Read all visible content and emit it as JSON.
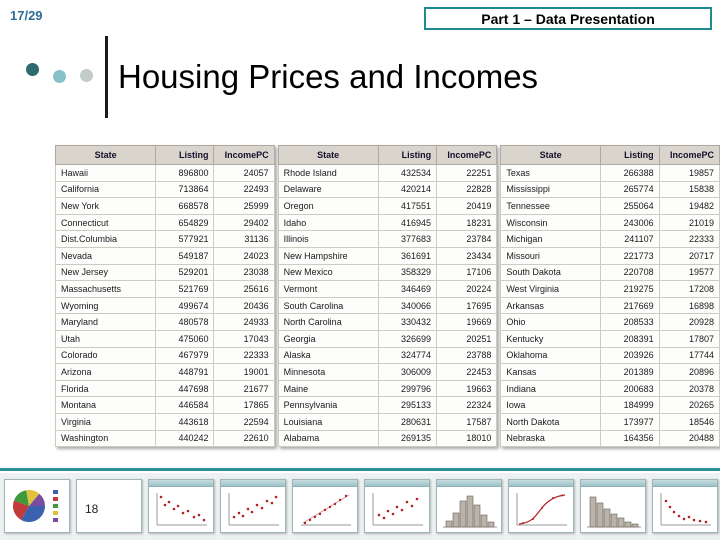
{
  "page": {
    "page_indicator": "17/29",
    "header_label": "Part 1 – Data Presentation",
    "title": "Housing Prices and Incomes"
  },
  "colors": {
    "accent_teal": "#1f8a8f",
    "page_indicator_blue": "#2e6e96",
    "table_header_bg": "#d9d5cc"
  },
  "tables": [
    {
      "headers": [
        "State",
        "Listing",
        "IncomePC"
      ],
      "rows": [
        [
          "Hawaii",
          "896800",
          "24057"
        ],
        [
          "California",
          "713864",
          "22493"
        ],
        [
          "New York",
          "668578",
          "25999"
        ],
        [
          "Connecticut",
          "654829",
          "29402"
        ],
        [
          "Dist.Columbia",
          "577921",
          "31136"
        ],
        [
          "Nevada",
          "549187",
          "24023"
        ],
        [
          "New Jersey",
          "529201",
          "23038"
        ],
        [
          "Massachusetts",
          "521769",
          "25616"
        ],
        [
          "Wyoming",
          "499674",
          "20436"
        ],
        [
          "Maryland",
          "480578",
          "24933"
        ],
        [
          "Utah",
          "475060",
          "17043"
        ],
        [
          "Colorado",
          "467979",
          "22333"
        ],
        [
          "Arizona",
          "448791",
          "19001"
        ],
        [
          "Florida",
          "447698",
          "21677"
        ],
        [
          "Montana",
          "446584",
          "17865"
        ],
        [
          "Virginia",
          "443618",
          "22594"
        ],
        [
          "Washington",
          "440242",
          "22610"
        ]
      ]
    },
    {
      "headers": [
        "State",
        "Listing",
        "IncomePC"
      ],
      "rows": [
        [
          "Rhode Island",
          "432534",
          "22251"
        ],
        [
          "Delaware",
          "420214",
          "22828"
        ],
        [
          "Oregon",
          "417551",
          "20419"
        ],
        [
          "Idaho",
          "416945",
          "18231"
        ],
        [
          "Illinois",
          "377683",
          "23784"
        ],
        [
          "New Hampshire",
          "361691",
          "23434"
        ],
        [
          "New Mexico",
          "358329",
          "17106"
        ],
        [
          "Vermont",
          "346469",
          "20224"
        ],
        [
          "South Carolina",
          "340066",
          "17695"
        ],
        [
          "North Carolina",
          "330432",
          "19669"
        ],
        [
          "Georgia",
          "326699",
          "20251"
        ],
        [
          "Alaska",
          "324774",
          "23788"
        ],
        [
          "Minnesota",
          "306009",
          "22453"
        ],
        [
          "Maine",
          "299796",
          "19663"
        ],
        [
          "Pennsylvania",
          "295133",
          "22324"
        ],
        [
          "Louisiana",
          "280631",
          "17587"
        ],
        [
          "Alabama",
          "269135",
          "18010"
        ]
      ]
    },
    {
      "headers": [
        "State",
        "Listing",
        "IncomePC"
      ],
      "rows": [
        [
          "Texas",
          "266388",
          "19857"
        ],
        [
          "Mississippi",
          "265774",
          "15838"
        ],
        [
          "Tennessee",
          "255064",
          "19482"
        ],
        [
          "Wisconsin",
          "243006",
          "21019"
        ],
        [
          "Michigan",
          "241107",
          "22333"
        ],
        [
          "Missouri",
          "221773",
          "20717"
        ],
        [
          "South Dakota",
          "220708",
          "19577"
        ],
        [
          "West Virginia",
          "219275",
          "17208"
        ],
        [
          "Arkansas",
          "217669",
          "16898"
        ],
        [
          "Ohio",
          "208533",
          "20928"
        ],
        [
          "Kentucky",
          "208391",
          "17807"
        ],
        [
          "Oklahoma",
          "203926",
          "17744"
        ],
        [
          "Kansas",
          "201389",
          "20896"
        ],
        [
          "Indiana",
          "200683",
          "20378"
        ],
        [
          "Iowa",
          "184999",
          "20265"
        ],
        [
          "North Dakota",
          "173977",
          "18546"
        ],
        [
          "Nebraska",
          "164356",
          "20488"
        ]
      ]
    }
  ],
  "filmstrip": {
    "slide_label": "18",
    "thumbnails": [
      "pie-chart",
      "blank-slide-18",
      "scatter-plot",
      "scatter-plot",
      "normal-quantile-plot",
      "scatter-plot",
      "histogram",
      "cumulative-distribution",
      "histogram",
      "scatter-plot"
    ]
  }
}
